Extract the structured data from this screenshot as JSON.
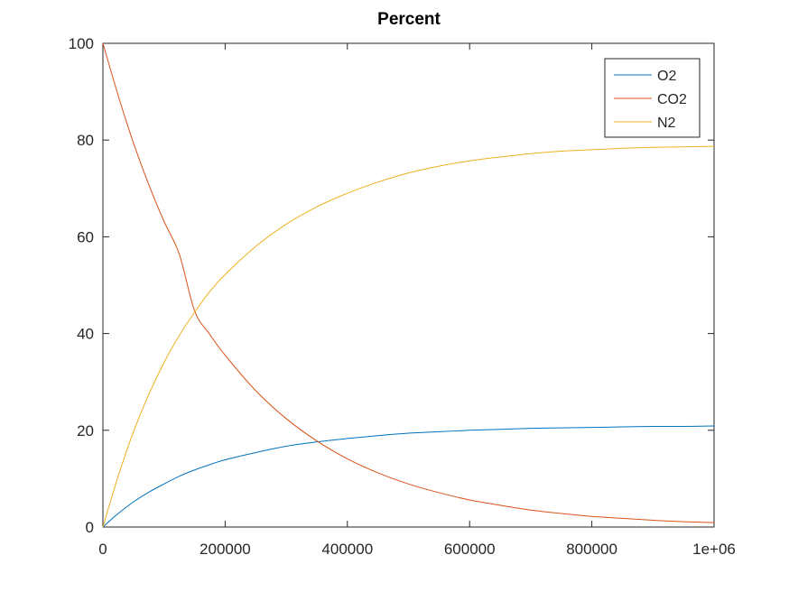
{
  "chart_data": {
    "type": "line",
    "title": "Percent",
    "xlabel": "",
    "ylabel": "",
    "xlim": [
      0,
      1000000
    ],
    "ylim": [
      0,
      100
    ],
    "grid": false,
    "legend_position": "top-right",
    "x_ticks": [
      {
        "value": 0,
        "label": "0"
      },
      {
        "value": 200000,
        "label": "200000"
      },
      {
        "value": 400000,
        "label": "400000"
      },
      {
        "value": 600000,
        "label": "600000"
      },
      {
        "value": 800000,
        "label": "800000"
      },
      {
        "value": 1000000,
        "label": "1e+06"
      }
    ],
    "y_ticks": [
      {
        "value": 0,
        "label": "0"
      },
      {
        "value": 20,
        "label": "20"
      },
      {
        "value": 40,
        "label": "40"
      },
      {
        "value": 60,
        "label": "60"
      },
      {
        "value": 80,
        "label": "80"
      },
      {
        "value": 100,
        "label": "100"
      }
    ],
    "x": [
      0,
      25000,
      50000,
      75000,
      100000,
      125000,
      150000,
      175000,
      200000,
      250000,
      300000,
      350000,
      400000,
      450000,
      500000,
      550000,
      600000,
      650000,
      700000,
      750000,
      800000,
      850000,
      900000,
      950000,
      1000000
    ],
    "series": [
      {
        "name": "O2",
        "color": "#0072bd",
        "values": [
          0,
          2.8,
          5.2,
          7.2,
          8.9,
          10.5,
          11.8,
          12.9,
          13.9,
          15.4,
          16.7,
          17.6,
          18.3,
          18.9,
          19.4,
          19.7,
          20.0,
          20.2,
          20.4,
          20.5,
          20.6,
          20.7,
          20.8,
          20.8,
          20.9
        ]
      },
      {
        "name": "CO2",
        "color": "#d95319",
        "values": [
          100,
          89.2,
          79.4,
          70.8,
          63.2,
          56.4,
          44.7,
          39.8,
          35.5,
          28.2,
          22.4,
          17.8,
          14.1,
          11.2,
          8.9,
          7.1,
          5.6,
          4.5,
          3.5,
          2.8,
          2.2,
          1.8,
          1.4,
          1.1,
          0.9
        ]
      },
      {
        "name": "N2",
        "color": "#edb120",
        "values": [
          0,
          10.5,
          19.7,
          27.4,
          34.0,
          39.6,
          44.4,
          48.7,
          52.2,
          58.0,
          62.6,
          66.2,
          69.0,
          71.3,
          73.2,
          74.6,
          75.7,
          76.5,
          77.2,
          77.7,
          78.0,
          78.3,
          78.5,
          78.6,
          78.7
        ]
      }
    ]
  }
}
